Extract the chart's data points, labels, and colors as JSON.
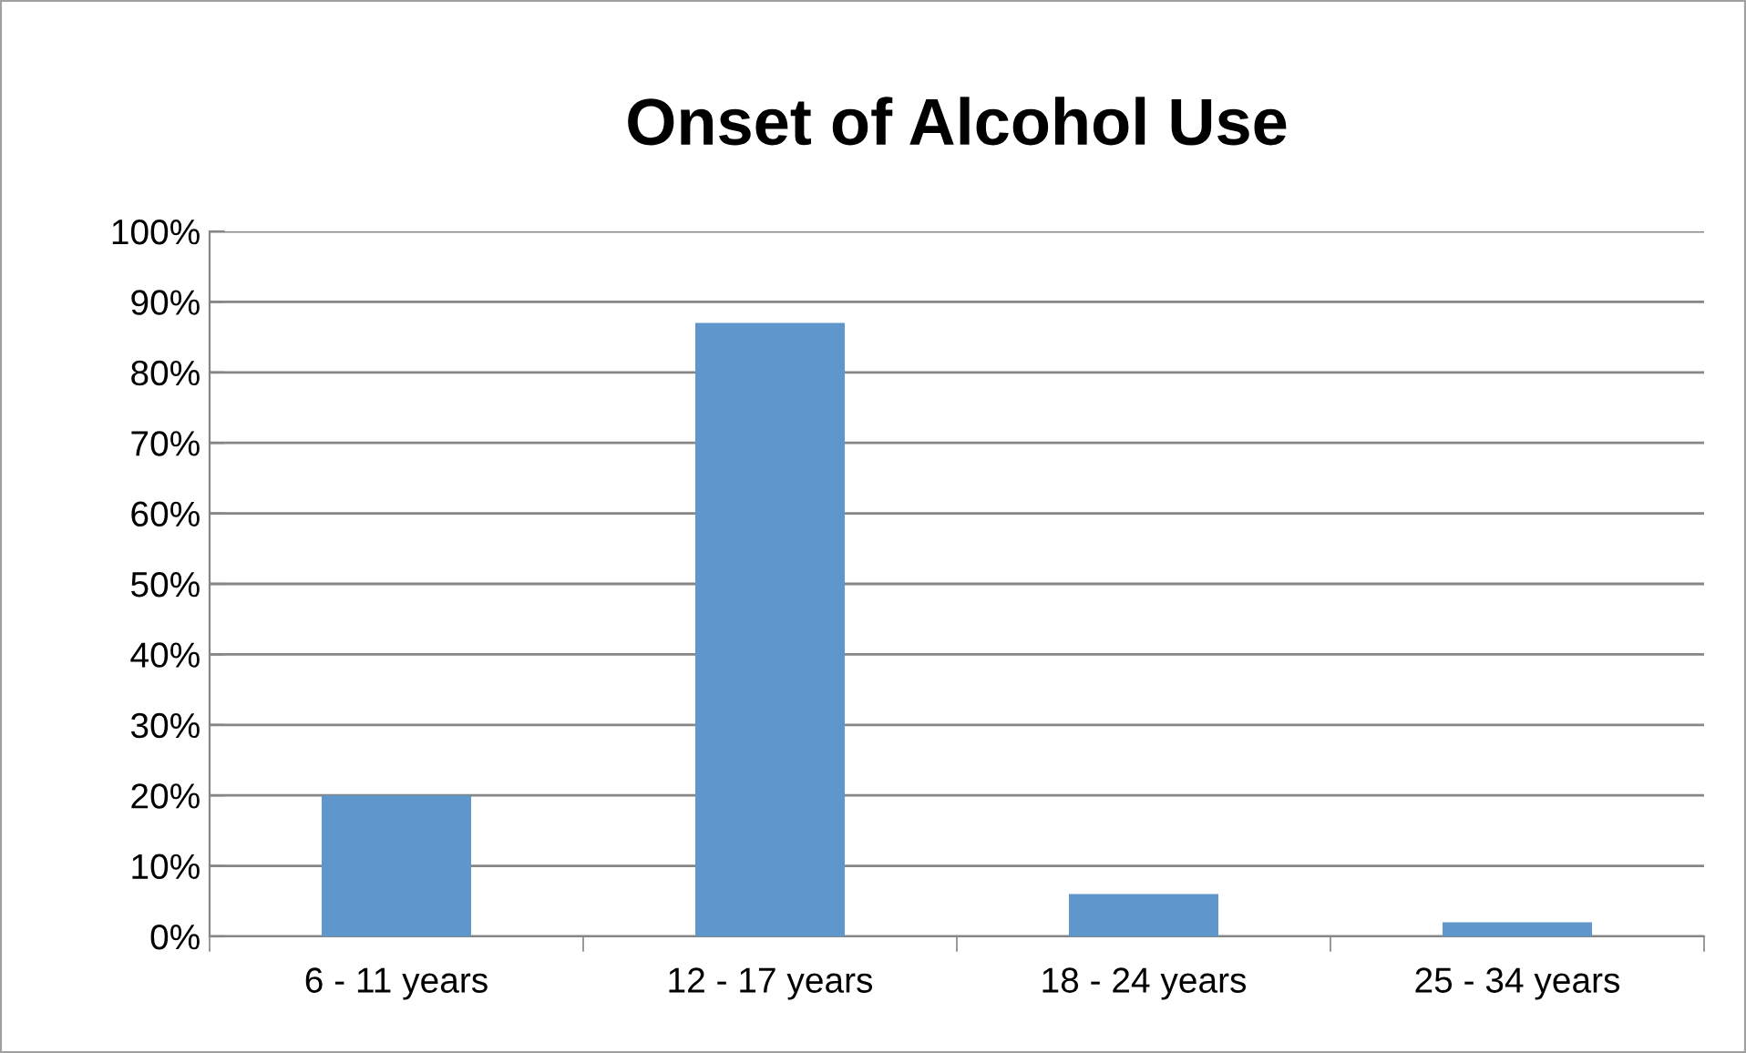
{
  "chart_data": {
    "type": "bar",
    "title": "Onset of Alcohol Use",
    "categories": [
      "6 - 11 years",
      "12 - 17 years",
      "18 - 24 years",
      "25 - 34 years"
    ],
    "values": [
      20,
      87,
      6,
      2
    ],
    "color": "#5f97cd",
    "ylim": [
      0,
      100
    ],
    "yticks": [
      {
        "value": 0,
        "label": "0%"
      },
      {
        "value": 10,
        "label": "10%"
      },
      {
        "value": 20,
        "label": "20%"
      },
      {
        "value": 30,
        "label": "30%"
      },
      {
        "value": 40,
        "label": "40%"
      },
      {
        "value": 50,
        "label": "50%"
      },
      {
        "value": 60,
        "label": "60%"
      },
      {
        "value": 70,
        "label": "70%"
      },
      {
        "value": 80,
        "label": "80%"
      },
      {
        "value": 90,
        "label": "90%"
      },
      {
        "value": 100,
        "label": "100%"
      }
    ],
    "grid": "y",
    "legend": false
  }
}
